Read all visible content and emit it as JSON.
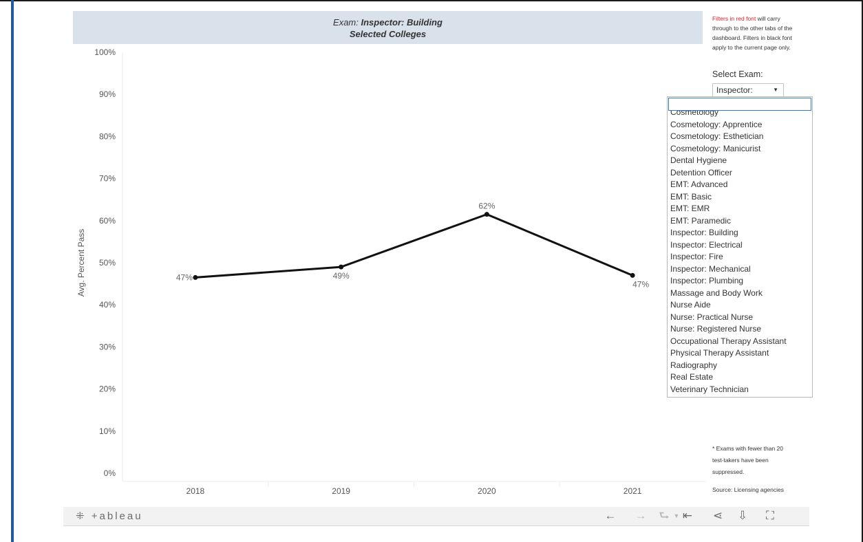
{
  "header": {
    "exam_label": "Exam:",
    "exam_value": "Inspector: Building",
    "subtitle": "Selected Colleges"
  },
  "filters_note": {
    "red_text": "Filters in red font",
    "rest_text": " will carry through to the other tabs of the dashboard. Filters in black font apply to the current page only."
  },
  "exam_filter": {
    "label": "Select Exam:",
    "selected": "Inspector: Building",
    "search_value": "",
    "options": [
      "Cosmetology",
      "Cosmetology: Apprentice",
      "Cosmetology: Esthetician",
      "Cosmetology: Manicurist",
      "Dental Hygiene",
      "Detention Officer",
      "EMT: Advanced",
      "EMT: Basic",
      "EMT: EMR",
      "EMT: Paramedic",
      "Inspector: Building",
      "Inspector: Electrical",
      "Inspector: Fire",
      "Inspector: Mechanical",
      "Inspector: Plumbing",
      "Massage and Body Work",
      "Nurse Aide",
      "Nurse: Practical Nurse",
      "Nurse: Registered Nurse",
      "Occupational Therapy Assistant",
      "Physical Therapy Assistant",
      "Radiography",
      "Real Estate",
      "Veterinary Technician"
    ]
  },
  "footnote": "* Exams with fewer than 20 test-takers have been suppressed.",
  "source": "Source: Licensing agencies",
  "chart_data": {
    "type": "line",
    "x": [
      "2018",
      "2019",
      "2020",
      "2021"
    ],
    "series": [
      {
        "values": [
          46.5,
          49,
          61.5,
          47
        ],
        "data_labels": [
          "47%",
          "49%",
          "62%",
          "47%"
        ],
        "color": "#111111"
      }
    ],
    "ylabel": "Avg. Percent Pass",
    "xlabel": "",
    "ylim": [
      0,
      100
    ],
    "y_ticks": [
      "0%",
      "10%",
      "20%",
      "30%",
      "40%",
      "50%",
      "60%",
      "70%",
      "80%",
      "90%",
      "100%"
    ],
    "grid": false
  },
  "toolbar": {
    "logo_text": "+ableau",
    "icons": [
      "undo-icon",
      "redo-icon",
      "revert-icon",
      "revert-dropdown-icon",
      "reset-icon",
      "share-icon",
      "download-icon",
      "fullscreen-icon"
    ]
  }
}
